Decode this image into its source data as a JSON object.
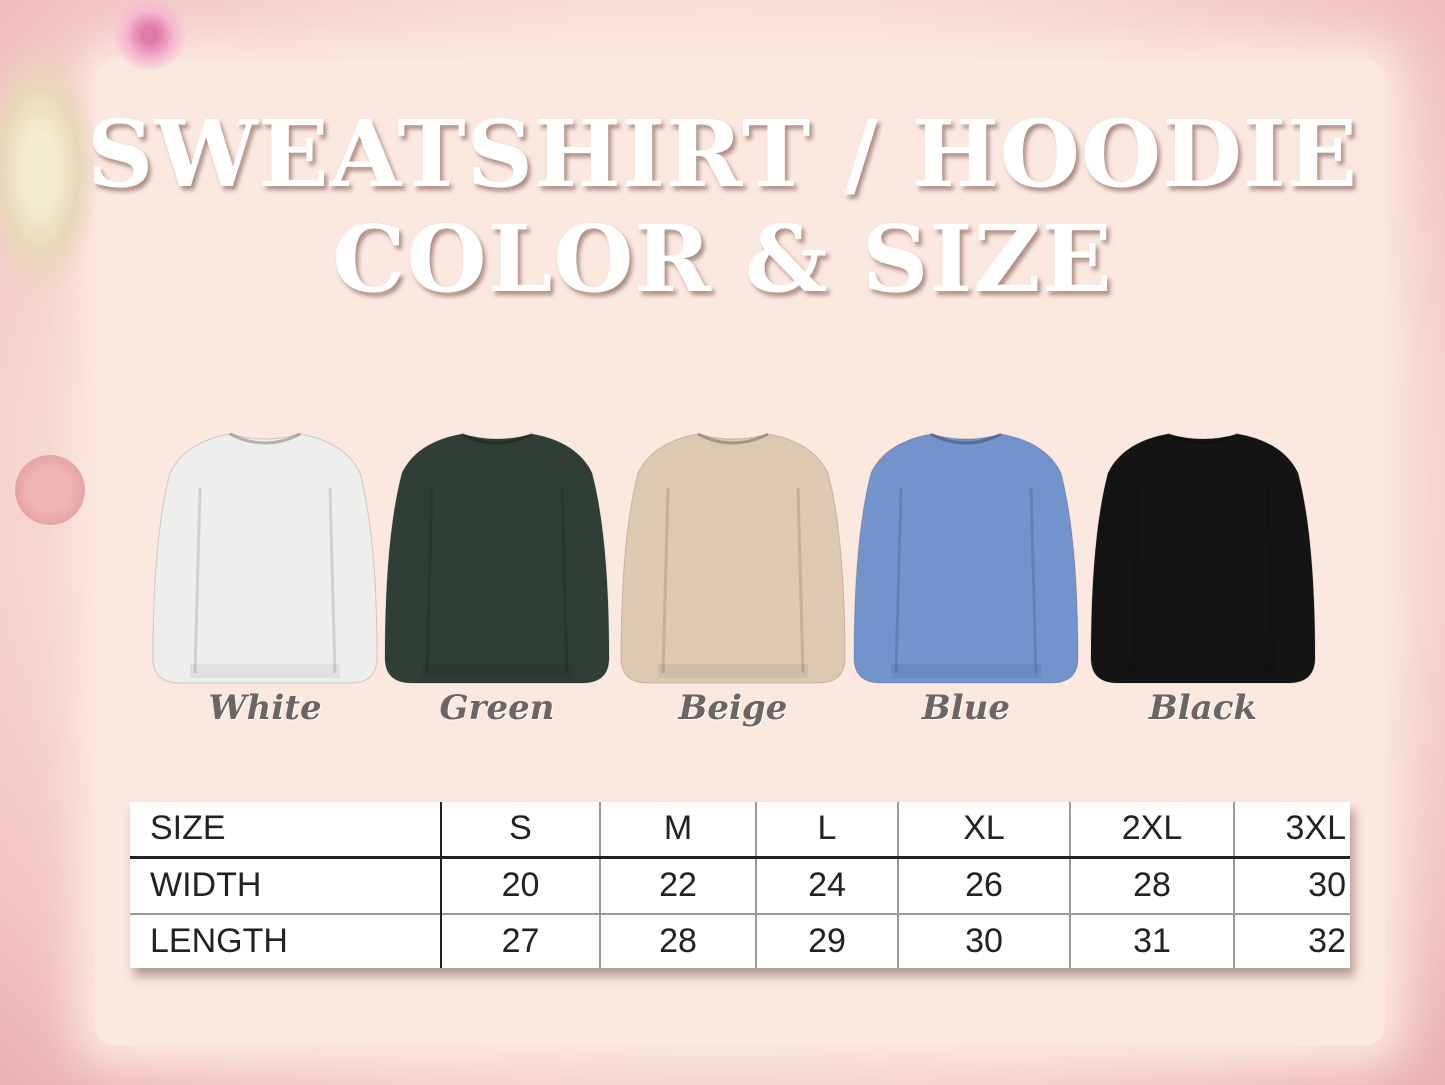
{
  "title": {
    "line1": "SWEATSHIRT / HOODIE",
    "line2": "COLOR & SIZE"
  },
  "colors": [
    {
      "label": "White",
      "hex": "#eeeeec"
    },
    {
      "label": "Green",
      "hex": "#2f3f36"
    },
    {
      "label": "Beige",
      "hex": "#ddc9b0"
    },
    {
      "label": "Blue",
      "hex": "#7293cc"
    },
    {
      "label": "Black",
      "hex": "#141414"
    }
  ],
  "size_table": {
    "header": [
      "SIZE",
      "S",
      "M",
      "L",
      "XL",
      "2XL",
      "3XL"
    ],
    "rows": [
      [
        "WIDTH",
        "20",
        "22",
        "24",
        "26",
        "28",
        "30"
      ],
      [
        "LENGTH",
        "27",
        "28",
        "29",
        "30",
        "31",
        "32"
      ]
    ]
  }
}
